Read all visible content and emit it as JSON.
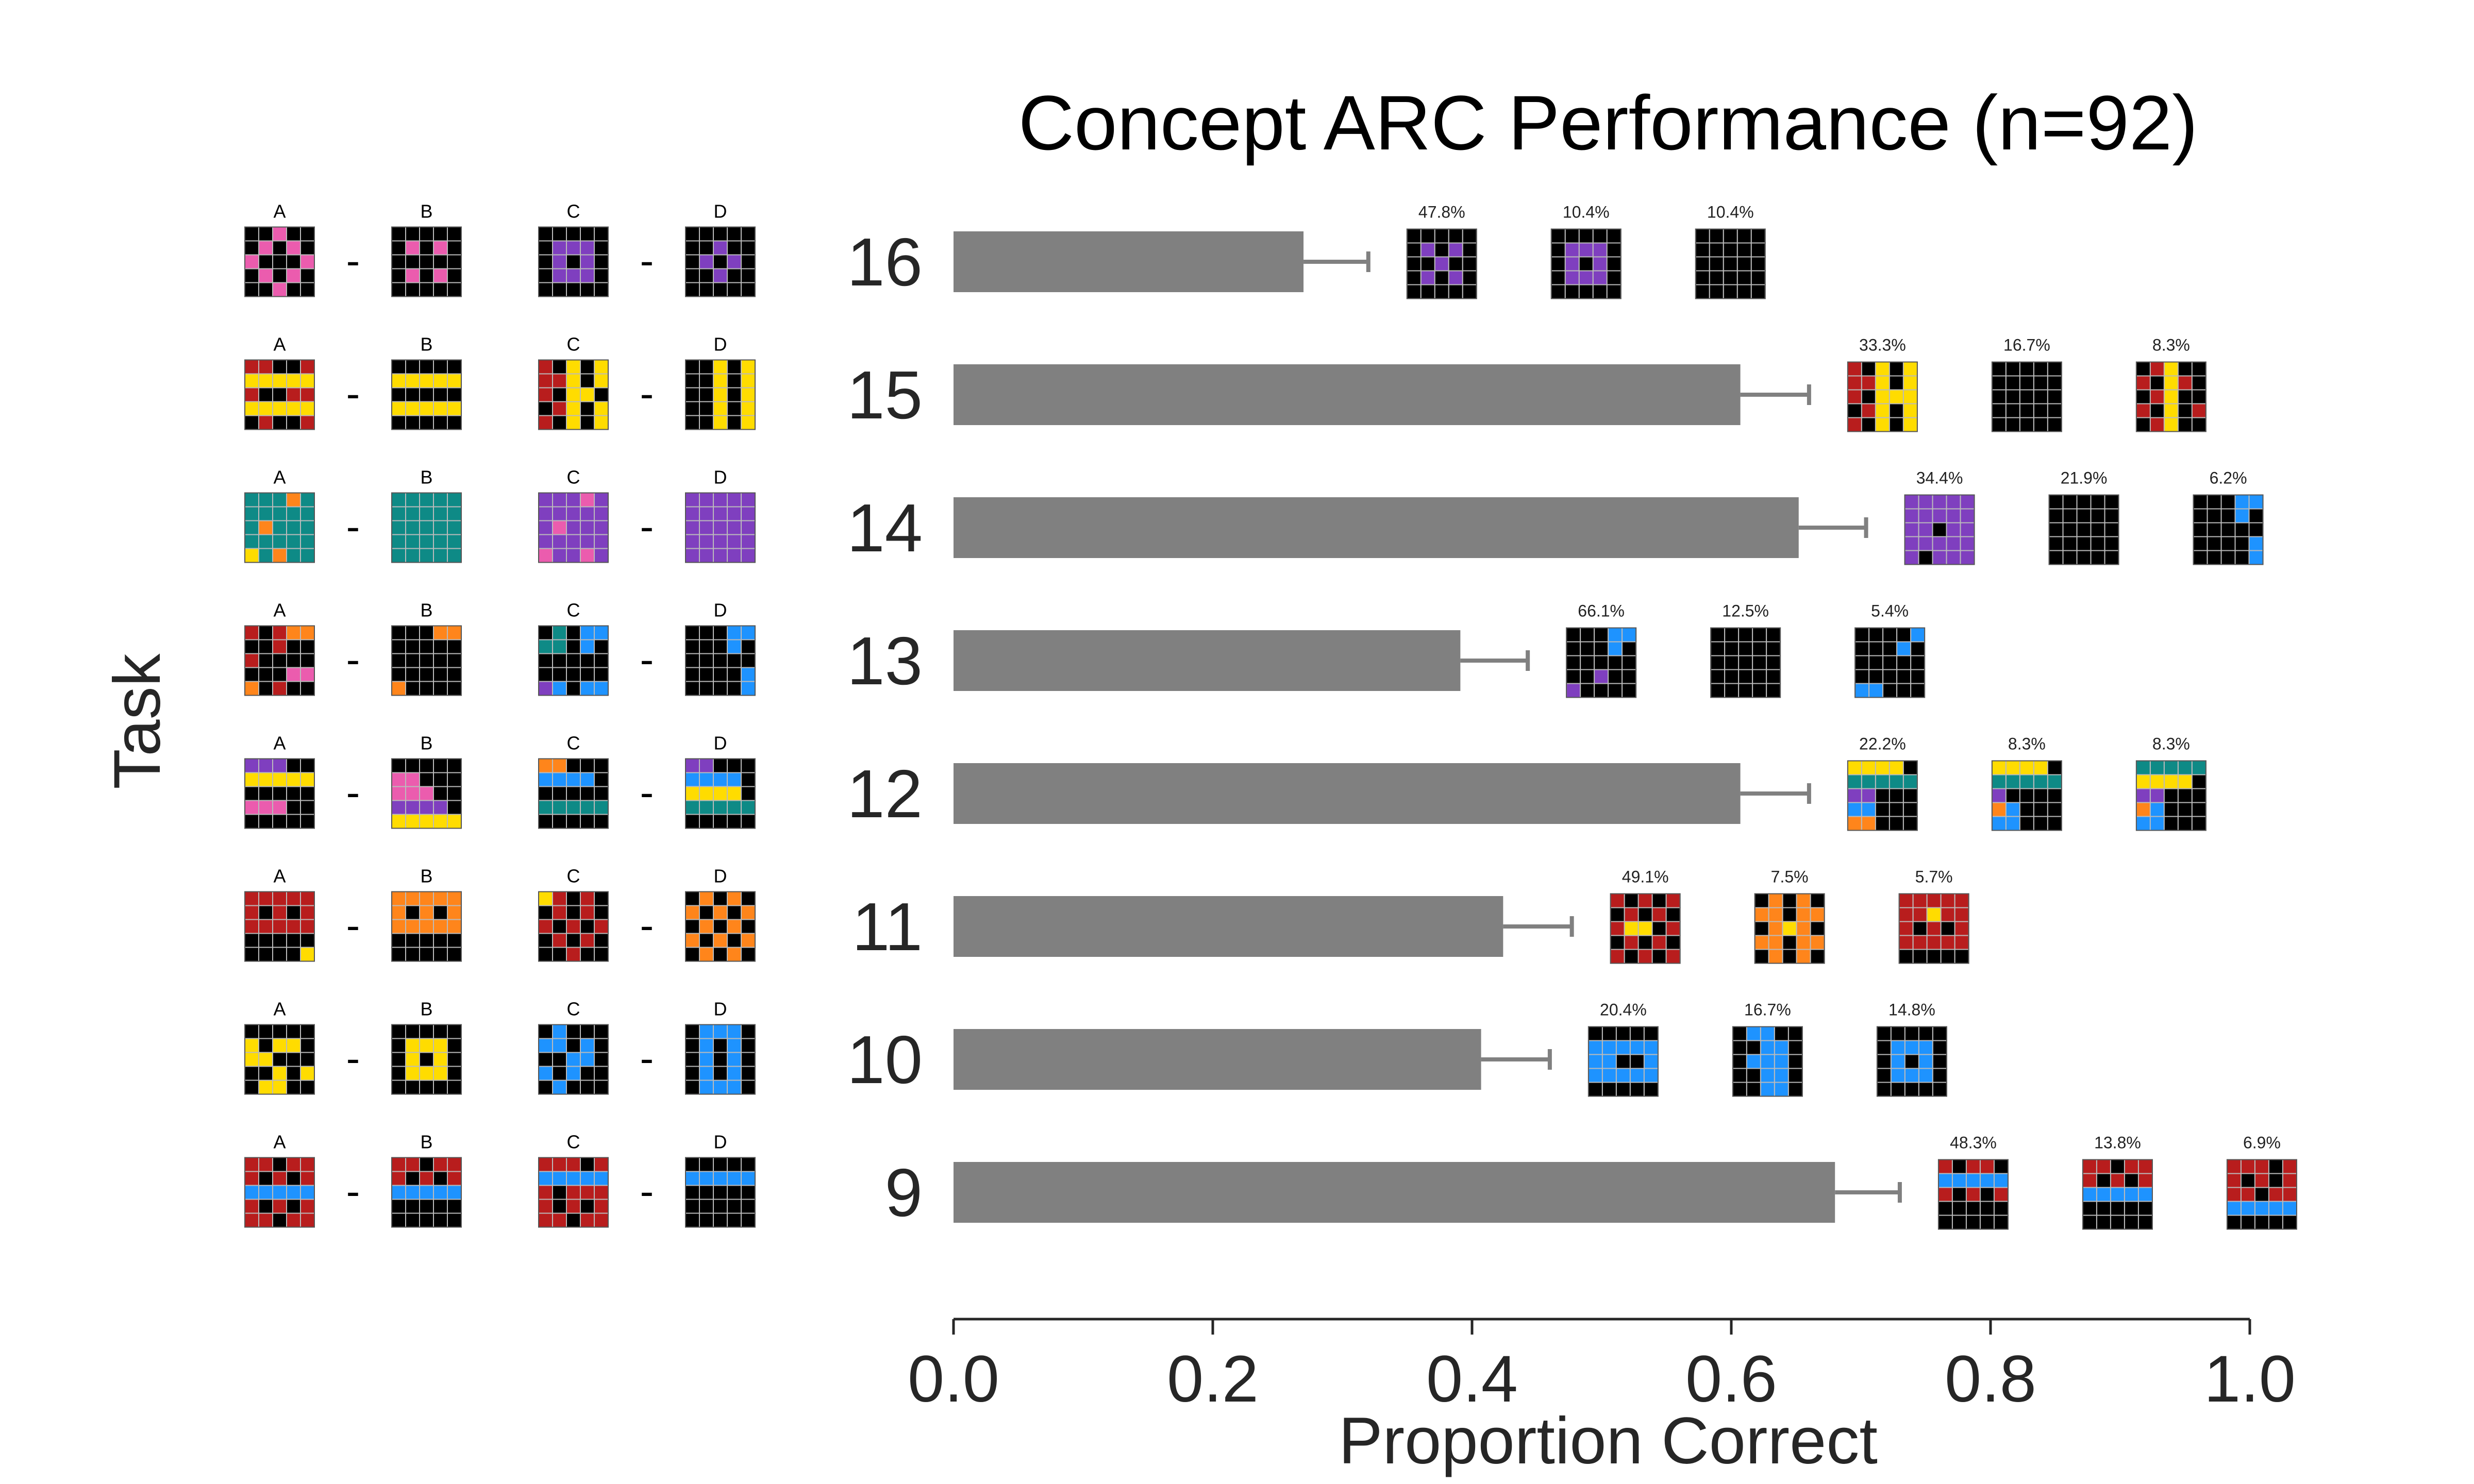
{
  "colors": {
    "bar": "#808080",
    "errorbar": "#808080",
    "axis": "#262626",
    "grid_line": "#bbbbbb",
    "palette": {
      "0": "#000000",
      "1": "#1E93FF",
      "2": "#B81D1D",
      "4": "#FFDC00",
      "6": "#EB5CAE",
      "7": "#FF851B",
      "8": "#0E8A86",
      "9": "#7F3FBF"
    }
  },
  "grid_headers": [
    "A",
    "B",
    "C",
    "D"
  ],
  "separator": "-",
  "chart_data": {
    "type": "bar",
    "orientation": "horizontal",
    "title": "Concept ARC Performance (n=92)",
    "xlabel": "Proportion Correct",
    "ylabel": "Task",
    "xlim": [
      0.0,
      1.0
    ],
    "xticks": [
      "0.0",
      "0.2",
      "0.4",
      "0.6",
      "0.8",
      "1.0"
    ],
    "categories": [
      "16",
      "15",
      "14",
      "13",
      "12",
      "11",
      "10",
      "9"
    ],
    "values": [
      0.27,
      0.607,
      0.652,
      0.391,
      0.607,
      0.424,
      0.407,
      0.68
    ],
    "errors": [
      0.05,
      0.053,
      0.052,
      0.052,
      0.053,
      0.053,
      0.053,
      0.05
    ],
    "tasks": [
      {
        "label": "16",
        "grids": {
          "A": [
            "00600",
            "06060",
            "60006",
            "06060",
            "00600"
          ],
          "B": [
            "00000",
            "06060",
            "00000",
            "06060",
            "00000"
          ],
          "C": [
            "00000",
            "09990",
            "09090",
            "09990",
            "00000"
          ],
          "D": [
            "00000",
            "00900",
            "09090",
            "00900",
            "00000"
          ]
        },
        "answers": [
          {
            "pct": "47.8%",
            "grid": [
              "00000",
              "09090",
              "00900",
              "09090",
              "00000"
            ]
          },
          {
            "pct": "10.4%",
            "grid": [
              "00000",
              "09990",
              "09090",
              "09990",
              "00000"
            ]
          },
          {
            "pct": "10.4%",
            "grid": [
              "00000",
              "00000",
              "00000",
              "00000",
              "00000"
            ]
          }
        ]
      },
      {
        "label": "15",
        "grids": {
          "A": [
            "22002",
            "44444",
            "20022",
            "44444",
            "02002"
          ],
          "B": [
            "00000",
            "44444",
            "00000",
            "44444",
            "00000"
          ],
          "C": [
            "20404",
            "22404",
            "20440",
            "02404",
            "20404"
          ],
          "D": [
            "00404",
            "00404",
            "00404",
            "00404",
            "00404"
          ]
        },
        "answers": [
          {
            "pct": "33.3%",
            "grid": [
              "20404",
              "22404",
              "20444",
              "02404",
              "20404"
            ]
          },
          {
            "pct": "16.7%",
            "grid": [
              "00000",
              "00000",
              "00000",
              "00000",
              "00000"
            ]
          },
          {
            "pct": "8.3%",
            "grid": [
              "02400",
              "20420",
              "02400",
              "20402",
              "02400"
            ]
          }
        ]
      },
      {
        "label": "14",
        "grids": {
          "A": [
            "88878",
            "88888",
            "87888",
            "88888",
            "48788"
          ],
          "B": [
            "88888",
            "88888",
            "88888",
            "88888",
            "88888"
          ],
          "C": [
            "99969",
            "99999",
            "96999",
            "99999",
            "69969"
          ],
          "D": [
            "99999",
            "99999",
            "99999",
            "99999",
            "99999"
          ]
        },
        "answers": [
          {
            "pct": "34.4%",
            "grid": [
              "99999",
              "99999",
              "99099",
              "99999",
              "90999"
            ]
          },
          {
            "pct": "21.9%",
            "grid": [
              "00000",
              "00000",
              "00000",
              "00000",
              "00000"
            ]
          },
          {
            "pct": "6.2%",
            "grid": [
              "00011",
              "00010",
              "00000",
              "00001",
              "00001"
            ]
          }
        ]
      },
      {
        "label": "13",
        "grids": {
          "A": [
            "20277",
            "00200",
            "20000",
            "00066",
            "70200"
          ],
          "B": [
            "00077",
            "00000",
            "00000",
            "00000",
            "70000"
          ],
          "C": [
            "08011",
            "88010",
            "00000",
            "00000",
            "91011"
          ],
          "D": [
            "00011",
            "00010",
            "00000",
            "00001",
            "00001"
          ]
        },
        "answers": [
          {
            "pct": "66.1%",
            "grid": [
              "00011",
              "00010",
              "00000",
              "00900",
              "90000"
            ]
          },
          {
            "pct": "12.5%",
            "grid": [
              "00000",
              "00000",
              "00000",
              "00000",
              "00000"
            ]
          },
          {
            "pct": "5.4%",
            "grid": [
              "00001",
              "00010",
              "00000",
              "00000",
              "11000"
            ]
          }
        ]
      },
      {
        "label": "12",
        "grids": {
          "A": [
            "99900",
            "44444",
            "00000",
            "66600",
            "00000"
          ],
          "B": [
            "00000",
            "66000",
            "66600",
            "99990",
            "44444"
          ],
          "C": [
            "77000",
            "11110",
            "00000",
            "88888",
            "00000"
          ],
          "D": [
            "99000",
            "11110",
            "44440",
            "88888",
            "00000"
          ]
        },
        "answers": [
          {
            "pct": "22.2%",
            "grid": [
              "44440",
              "88888",
              "99000",
              "11000",
              "77000"
            ]
          },
          {
            "pct": "8.3%",
            "grid": [
              "44440",
              "88888",
              "90000",
              "71000",
              "11000"
            ]
          },
          {
            "pct": "8.3%",
            "grid": [
              "88888",
              "44440",
              "99000",
              "71000",
              "11000"
            ]
          }
        ]
      },
      {
        "label": "11",
        "grids": {
          "A": [
            "22222",
            "20202",
            "22222",
            "00000",
            "00004"
          ],
          "B": [
            "77777",
            "70707",
            "77777",
            "00000",
            "00000"
          ],
          "C": [
            "42020",
            "02020",
            "20202",
            "02020",
            "00200"
          ],
          "D": [
            "07070",
            "70707",
            "07070",
            "70707",
            "07070"
          ]
        },
        "answers": [
          {
            "pct": "49.1%",
            "grid": [
              "20202",
              "02020",
              "24402",
              "02020",
              "20202"
            ]
          },
          {
            "pct": "7.5%",
            "grid": [
              "07070",
              "77077",
              "07470",
              "77077",
              "07070"
            ]
          },
          {
            "pct": "5.7%",
            "grid": [
              "22222",
              "22422",
              "20202",
              "22222",
              "00000"
            ]
          }
        ]
      },
      {
        "label": "10",
        "grids": {
          "A": [
            "00000",
            "40440",
            "44000",
            "00404",
            "04400"
          ],
          "B": [
            "00000",
            "04440",
            "04040",
            "04440",
            "00000"
          ],
          "C": [
            "01000",
            "11010",
            "00110",
            "10100",
            "01000"
          ],
          "D": [
            "01110",
            "01010",
            "01010",
            "01010",
            "01110"
          ]
        },
        "answers": [
          {
            "pct": "20.4%",
            "grid": [
              "00000",
              "11111",
              "11001",
              "11111",
              "00000"
            ]
          },
          {
            "pct": "16.7%",
            "grid": [
              "01100",
              "00110",
              "01110",
              "00110",
              "00110"
            ]
          },
          {
            "pct": "14.8%",
            "grid": [
              "00000",
              "01110",
              "01010",
              "01110",
              "00000"
            ]
          }
        ]
      },
      {
        "label": "9",
        "grids": {
          "A": [
            "22022",
            "20202",
            "11111",
            "20202",
            "22022"
          ],
          "B": [
            "22022",
            "20202",
            "11111",
            "00000",
            "00000"
          ],
          "C": [
            "22202",
            "11111",
            "20222",
            "20202",
            "22022"
          ],
          "D": [
            "00000",
            "11111",
            "00000",
            "00000",
            "00000"
          ]
        },
        "answers": [
          {
            "pct": "48.3%",
            "grid": [
              "20220",
              "11111",
              "20202",
              "00000",
              "00000"
            ]
          },
          {
            "pct": "13.8%",
            "grid": [
              "22022",
              "20202",
              "11111",
              "00000",
              "00000"
            ]
          },
          {
            "pct": "6.9%",
            "grid": [
              "22202",
              "20202",
              "22022",
              "11111",
              "00000"
            ]
          }
        ]
      }
    ]
  }
}
